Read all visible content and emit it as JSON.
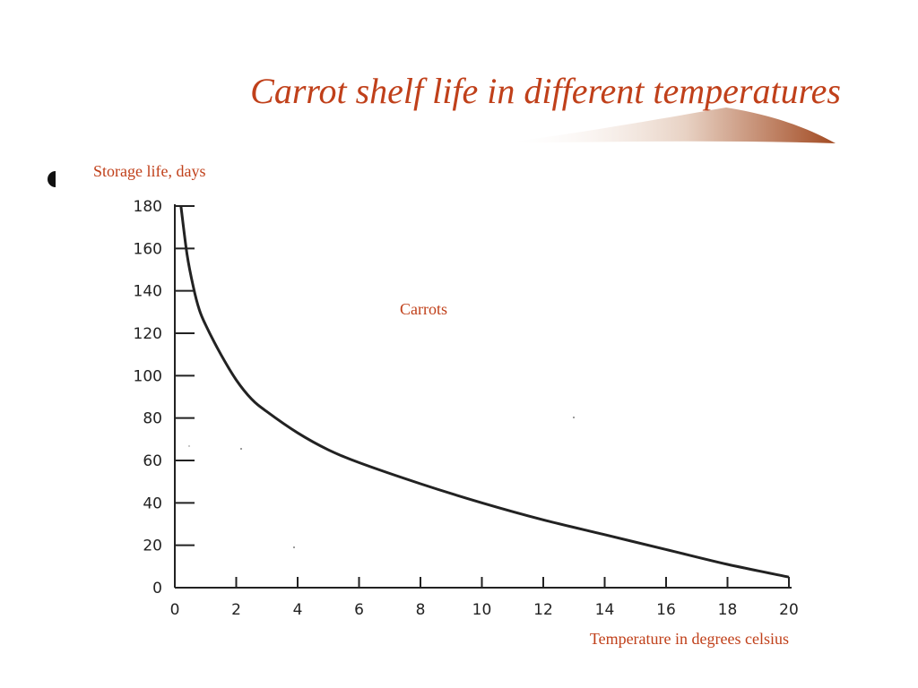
{
  "slide": {
    "title": "Carrot shelf life in different temperatures",
    "colors": {
      "title": "#c0401a",
      "curve": "#222222",
      "axis": "#222222"
    }
  },
  "chart_data": {
    "type": "line",
    "ylabel": "Storage life, days",
    "xlabel": "Temperature in degrees celsius",
    "annotation": "Carrots",
    "xlim": [
      0,
      20
    ],
    "ylim": [
      0,
      180
    ],
    "x_ticks": [
      0,
      2,
      4,
      6,
      8,
      10,
      12,
      14,
      16,
      18,
      20
    ],
    "y_ticks": [
      0,
      20,
      40,
      60,
      80,
      100,
      120,
      140,
      160,
      180
    ],
    "grid": false,
    "series": [
      {
        "x": [
          0.2,
          0.4,
          0.6,
          0.8,
          1.0,
          1.5,
          2.0,
          2.5,
          3.0,
          4.0,
          5.0,
          6.0,
          8.0,
          10.0,
          12.0,
          14.0,
          16.0,
          18.0,
          20.0
        ],
        "values": [
          180,
          157,
          142,
          131,
          124,
          110,
          98,
          89,
          83,
          73,
          65,
          59,
          49,
          40,
          32,
          25,
          18,
          11,
          5
        ]
      }
    ]
  }
}
